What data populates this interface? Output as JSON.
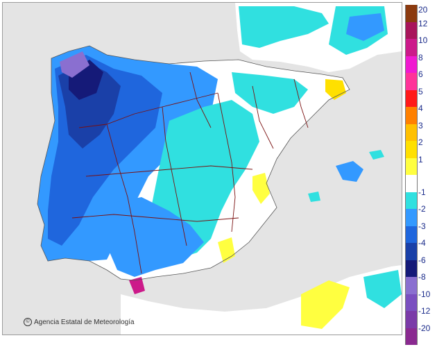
{
  "credit": {
    "symbol": "©",
    "text": "Agencia Estatal de Meteorología"
  },
  "legend": {
    "positive": [
      {
        "label": "20",
        "color": "#8b3a0f"
      },
      {
        "label": "12",
        "color": "#a8155a"
      },
      {
        "label": "10",
        "color": "#cc1a8a"
      },
      {
        "label": "8",
        "color": "#f01ad0"
      },
      {
        "label": "6",
        "color": "#ff3399"
      },
      {
        "label": "5",
        "color": "#ff1a1a"
      },
      {
        "label": "4",
        "color": "#ff8000"
      },
      {
        "label": "3",
        "color": "#ffc000"
      },
      {
        "label": "2",
        "color": "#ffe000"
      },
      {
        "label": "1",
        "color": "#ffff40"
      }
    ],
    "neutral": {
      "color": "#ffffff"
    },
    "negative": [
      {
        "label": "-1",
        "color": "#30e0e0"
      },
      {
        "label": "-2",
        "color": "#3399ff"
      },
      {
        "label": "-3",
        "color": "#1f66dd"
      },
      {
        "label": "-4",
        "color": "#1a40a8"
      },
      {
        "label": "-6",
        "color": "#151a78"
      },
      {
        "label": "-8",
        "color": "#8a6fd0"
      },
      {
        "label": "-10",
        "color": "#7a4fc0"
      },
      {
        "label": "-12",
        "color": "#7a3aa8"
      },
      {
        "label": "-20",
        "color": "#8a2a90"
      }
    ]
  },
  "map_colors": {
    "sea": "#e4e4e4",
    "land": "#ffffff",
    "border": "#7a1010"
  }
}
